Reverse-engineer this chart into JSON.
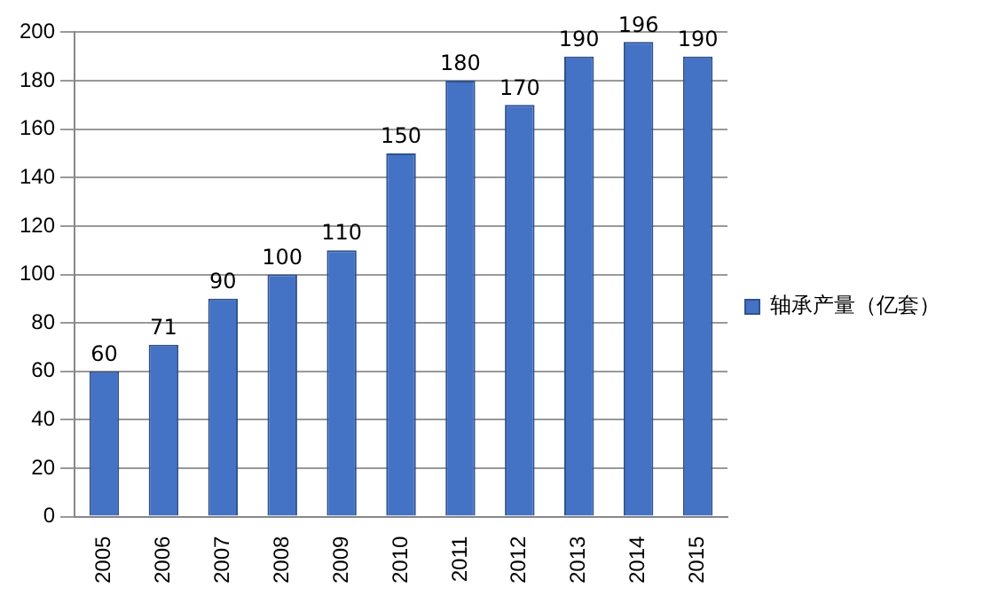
{
  "chart_data": {
    "type": "bar",
    "categories": [
      "2005",
      "2006",
      "2007",
      "2008",
      "2009",
      "2010",
      "2011",
      "2012",
      "2013",
      "2014",
      "2015"
    ],
    "series": [
      {
        "name": "轴承产量（亿套）",
        "color": "#4472c4",
        "values": [
          60,
          71,
          90,
          100,
          110,
          150,
          180,
          170,
          190,
          196,
          190
        ]
      }
    ],
    "ylim": [
      0,
      200
    ],
    "yticks": [
      0,
      20,
      40,
      60,
      80,
      100,
      120,
      140,
      160,
      180,
      200
    ],
    "grid": "y",
    "legend": "right",
    "data_labels": true
  }
}
